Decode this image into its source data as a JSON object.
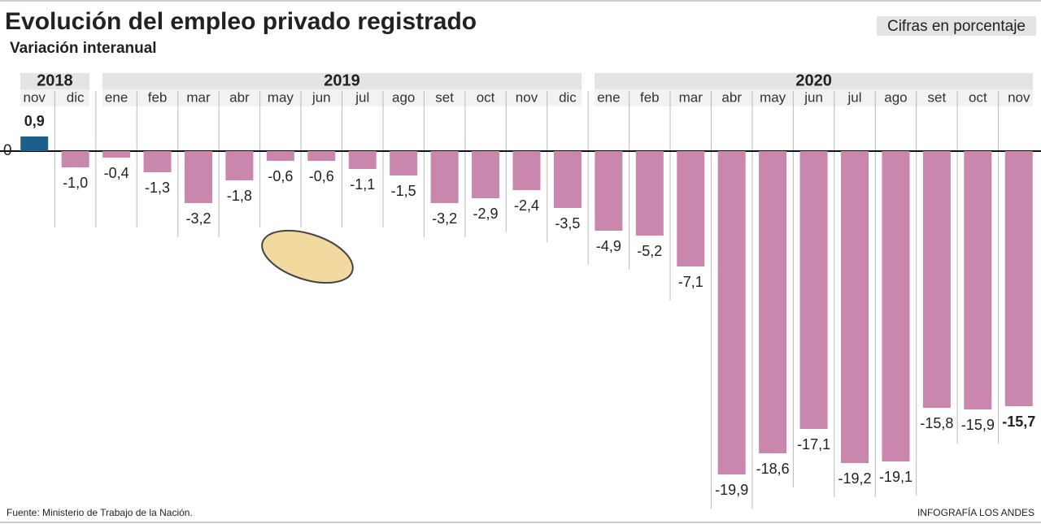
{
  "chart_data": {
    "type": "bar",
    "title": "Evolución del empleo privado registrado",
    "subtitle": "Variación interanual",
    "note": "Cifras en porcentaje",
    "source": "Fuente: Ministerio de Trabajo de la Nación.",
    "credit": "INFOGRAFÍA LOS ANDES",
    "categories": [
      "nov",
      "dic",
      "ene",
      "feb",
      "mar",
      "abr",
      "may",
      "jun",
      "jul",
      "ago",
      "set",
      "oct",
      "nov",
      "dic",
      "ene",
      "feb",
      "mar",
      "abr",
      "may",
      "jun",
      "jul",
      "ago",
      "set",
      "oct",
      "nov"
    ],
    "category_years": [
      "2018",
      null,
      "2019",
      null,
      null,
      null,
      null,
      null,
      null,
      null,
      null,
      null,
      null,
      null,
      "2020",
      null,
      null,
      null,
      null,
      null,
      null,
      null,
      null,
      null,
      null
    ],
    "values": [
      0.9,
      -1.0,
      -0.4,
      -1.3,
      -3.2,
      -1.8,
      -0.6,
      -0.6,
      -1.1,
      -1.5,
      -3.2,
      -2.9,
      -2.4,
      -3.5,
      -4.9,
      -5.2,
      -7.1,
      -19.9,
      -18.6,
      -17.1,
      -19.2,
      -19.1,
      -15.8,
      -15.9,
      -15.7
    ],
    "value_labels": [
      "0,9",
      "-1,0",
      "-0,4",
      "-1,3",
      "-3,2",
      "-1,8",
      "-0,6",
      "-0,6",
      "-1,1",
      "-1,5",
      "-3,2",
      "-2,9",
      "-2,4",
      "-3,5",
      "-4,9",
      "-5,2",
      "-7,1",
      "-19,9",
      "-18,6",
      "-17,1",
      "-19,2",
      "-19,1",
      "-15,8",
      "-15,9",
      "-15,7"
    ],
    "positive_color": "#1d5f8a",
    "color": "#c987ad",
    "ylim": [
      -21.5,
      1.5
    ],
    "yticks": [
      0
    ]
  }
}
